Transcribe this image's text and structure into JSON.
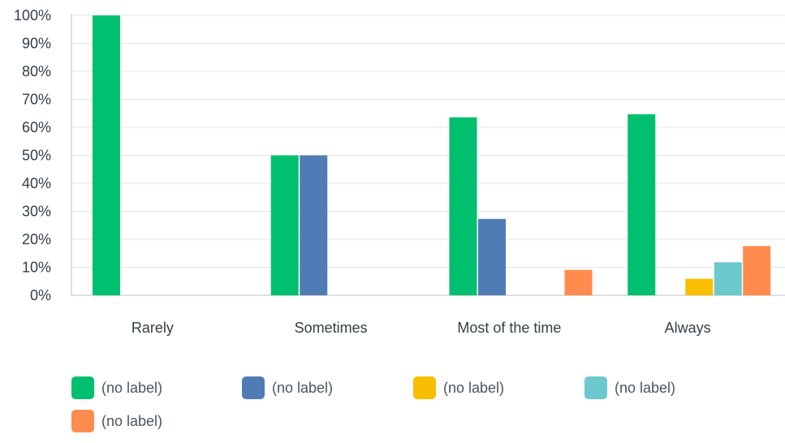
{
  "chart_data": {
    "type": "bar",
    "title": "",
    "xlabel": "",
    "ylabel": "",
    "categories": [
      "Rarely",
      "Sometimes",
      "Most of the time",
      "Always"
    ],
    "ylim": [
      0,
      100
    ],
    "yticks": [
      0,
      10,
      20,
      30,
      40,
      50,
      60,
      70,
      80,
      90,
      100
    ],
    "ytick_labels": [
      "0%",
      "10%",
      "20%",
      "30%",
      "40%",
      "50%",
      "60%",
      "70%",
      "80%",
      "90%",
      "100%"
    ],
    "grid": true,
    "legend_position": "bottom",
    "series": [
      {
        "name": "(no label)",
        "color": "#00bf6f",
        "values": [
          100,
          50,
          63.6,
          64.7
        ]
      },
      {
        "name": "(no label)",
        "color": "#507cb6",
        "values": [
          0,
          50,
          27.3,
          0
        ]
      },
      {
        "name": "(no label)",
        "color": "#f9be00",
        "values": [
          0,
          0,
          0,
          5.9
        ]
      },
      {
        "name": "(no label)",
        "color": "#6bc8cd",
        "values": [
          0,
          0,
          0,
          11.8
        ]
      },
      {
        "name": "(no label)",
        "color": "#ff8b4f",
        "values": [
          0,
          0,
          9.1,
          17.6
        ]
      }
    ]
  }
}
